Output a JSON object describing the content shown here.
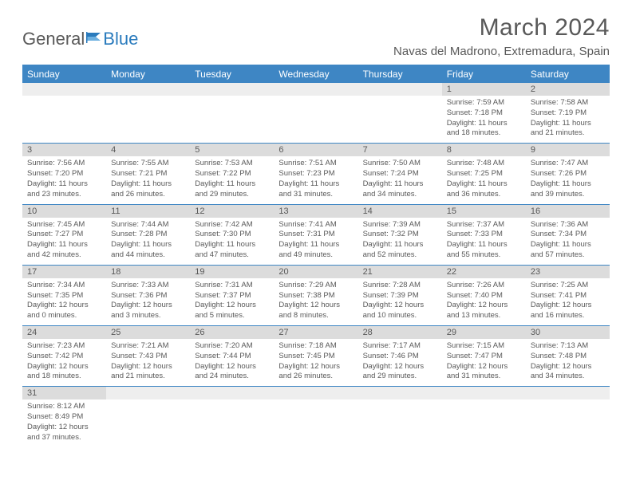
{
  "logo": {
    "text1": "General",
    "text2": "Blue"
  },
  "title": "March 2024",
  "location": "Navas del Madrono, Extremadura, Spain",
  "colors": {
    "accent": "#3e86c4",
    "text": "#595959",
    "daynum_bg": "#dcdcdc",
    "empty_bg": "#eeeeee"
  },
  "weekdays": [
    "Sunday",
    "Monday",
    "Tuesday",
    "Wednesday",
    "Thursday",
    "Friday",
    "Saturday"
  ],
  "weeks": [
    [
      null,
      null,
      null,
      null,
      null,
      {
        "n": "1",
        "sr": "7:59 AM",
        "ss": "7:18 PM",
        "dl": "11 hours and 18 minutes."
      },
      {
        "n": "2",
        "sr": "7:58 AM",
        "ss": "7:19 PM",
        "dl": "11 hours and 21 minutes."
      }
    ],
    [
      {
        "n": "3",
        "sr": "7:56 AM",
        "ss": "7:20 PM",
        "dl": "11 hours and 23 minutes."
      },
      {
        "n": "4",
        "sr": "7:55 AM",
        "ss": "7:21 PM",
        "dl": "11 hours and 26 minutes."
      },
      {
        "n": "5",
        "sr": "7:53 AM",
        "ss": "7:22 PM",
        "dl": "11 hours and 29 minutes."
      },
      {
        "n": "6",
        "sr": "7:51 AM",
        "ss": "7:23 PM",
        "dl": "11 hours and 31 minutes."
      },
      {
        "n": "7",
        "sr": "7:50 AM",
        "ss": "7:24 PM",
        "dl": "11 hours and 34 minutes."
      },
      {
        "n": "8",
        "sr": "7:48 AM",
        "ss": "7:25 PM",
        "dl": "11 hours and 36 minutes."
      },
      {
        "n": "9",
        "sr": "7:47 AM",
        "ss": "7:26 PM",
        "dl": "11 hours and 39 minutes."
      }
    ],
    [
      {
        "n": "10",
        "sr": "7:45 AM",
        "ss": "7:27 PM",
        "dl": "11 hours and 42 minutes."
      },
      {
        "n": "11",
        "sr": "7:44 AM",
        "ss": "7:28 PM",
        "dl": "11 hours and 44 minutes."
      },
      {
        "n": "12",
        "sr": "7:42 AM",
        "ss": "7:30 PM",
        "dl": "11 hours and 47 minutes."
      },
      {
        "n": "13",
        "sr": "7:41 AM",
        "ss": "7:31 PM",
        "dl": "11 hours and 49 minutes."
      },
      {
        "n": "14",
        "sr": "7:39 AM",
        "ss": "7:32 PM",
        "dl": "11 hours and 52 minutes."
      },
      {
        "n": "15",
        "sr": "7:37 AM",
        "ss": "7:33 PM",
        "dl": "11 hours and 55 minutes."
      },
      {
        "n": "16",
        "sr": "7:36 AM",
        "ss": "7:34 PM",
        "dl": "11 hours and 57 minutes."
      }
    ],
    [
      {
        "n": "17",
        "sr": "7:34 AM",
        "ss": "7:35 PM",
        "dl": "12 hours and 0 minutes."
      },
      {
        "n": "18",
        "sr": "7:33 AM",
        "ss": "7:36 PM",
        "dl": "12 hours and 3 minutes."
      },
      {
        "n": "19",
        "sr": "7:31 AM",
        "ss": "7:37 PM",
        "dl": "12 hours and 5 minutes."
      },
      {
        "n": "20",
        "sr": "7:29 AM",
        "ss": "7:38 PM",
        "dl": "12 hours and 8 minutes."
      },
      {
        "n": "21",
        "sr": "7:28 AM",
        "ss": "7:39 PM",
        "dl": "12 hours and 10 minutes."
      },
      {
        "n": "22",
        "sr": "7:26 AM",
        "ss": "7:40 PM",
        "dl": "12 hours and 13 minutes."
      },
      {
        "n": "23",
        "sr": "7:25 AM",
        "ss": "7:41 PM",
        "dl": "12 hours and 16 minutes."
      }
    ],
    [
      {
        "n": "24",
        "sr": "7:23 AM",
        "ss": "7:42 PM",
        "dl": "12 hours and 18 minutes."
      },
      {
        "n": "25",
        "sr": "7:21 AM",
        "ss": "7:43 PM",
        "dl": "12 hours and 21 minutes."
      },
      {
        "n": "26",
        "sr": "7:20 AM",
        "ss": "7:44 PM",
        "dl": "12 hours and 24 minutes."
      },
      {
        "n": "27",
        "sr": "7:18 AM",
        "ss": "7:45 PM",
        "dl": "12 hours and 26 minutes."
      },
      {
        "n": "28",
        "sr": "7:17 AM",
        "ss": "7:46 PM",
        "dl": "12 hours and 29 minutes."
      },
      {
        "n": "29",
        "sr": "7:15 AM",
        "ss": "7:47 PM",
        "dl": "12 hours and 31 minutes."
      },
      {
        "n": "30",
        "sr": "7:13 AM",
        "ss": "7:48 PM",
        "dl": "12 hours and 34 minutes."
      }
    ],
    [
      {
        "n": "31",
        "sr": "8:12 AM",
        "ss": "8:49 PM",
        "dl": "12 hours and 37 minutes."
      },
      null,
      null,
      null,
      null,
      null,
      null
    ]
  ],
  "labels": {
    "sunrise": "Sunrise: ",
    "sunset": "Sunset: ",
    "daylight": "Daylight: "
  }
}
